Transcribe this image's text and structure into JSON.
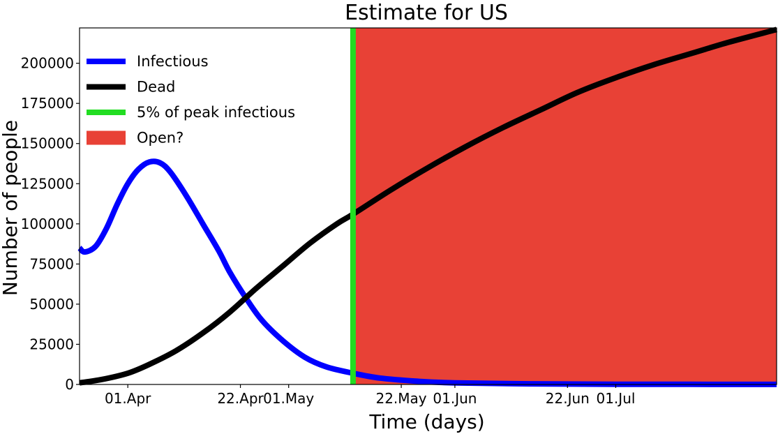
{
  "chart_data": {
    "type": "line",
    "title": "Estimate for US",
    "xlabel": "Time (days)",
    "ylabel": "Number of people",
    "xlim": [
      "2020-03-23",
      "2020-07-31"
    ],
    "ylim": [
      0,
      222000
    ],
    "yticks": [
      0,
      25000,
      50000,
      75000,
      100000,
      125000,
      150000,
      175000,
      200000
    ],
    "xticks": [
      {
        "date": "2020-04-01",
        "label": "01.Apr"
      },
      {
        "date": "2020-04-22",
        "label": "22.Apr"
      },
      {
        "date": "2020-05-01",
        "label": "01.May"
      },
      {
        "date": "2020-05-22",
        "label": "22.May"
      },
      {
        "date": "2020-06-01",
        "label": "01.Jun"
      },
      {
        "date": "2020-06-22",
        "label": "22.Jun"
      },
      {
        "date": "2020-07-01",
        "label": "01.Jul"
      }
    ],
    "series": [
      {
        "name": "Infectious",
        "color": "#0000ff",
        "points": [
          [
            "2020-03-23",
            85000
          ],
          [
            "2020-03-24",
            82500
          ],
          [
            "2020-03-26",
            86000
          ],
          [
            "2020-03-28",
            97000
          ],
          [
            "2020-03-30",
            112000
          ],
          [
            "2020-04-01",
            125000
          ],
          [
            "2020-04-03",
            134000
          ],
          [
            "2020-04-05",
            138500
          ],
          [
            "2020-04-07",
            138000
          ],
          [
            "2020-04-09",
            132000
          ],
          [
            "2020-04-12",
            117000
          ],
          [
            "2020-04-15",
            100000
          ],
          [
            "2020-04-18",
            83000
          ],
          [
            "2020-04-20",
            70000
          ],
          [
            "2020-04-23",
            54000
          ],
          [
            "2020-04-26",
            40000
          ],
          [
            "2020-04-30",
            27000
          ],
          [
            "2020-05-04",
            17000
          ],
          [
            "2020-05-08",
            11000
          ],
          [
            "2020-05-13",
            7000
          ],
          [
            "2020-05-18",
            4000
          ],
          [
            "2020-05-25",
            2000
          ],
          [
            "2020-06-01",
            1000
          ],
          [
            "2020-06-15",
            400
          ],
          [
            "2020-07-01",
            150
          ],
          [
            "2020-07-31",
            50
          ]
        ]
      },
      {
        "name": "Dead",
        "color": "#000000",
        "points": [
          [
            "2020-03-23",
            1000
          ],
          [
            "2020-03-27",
            3000
          ],
          [
            "2020-04-01",
            7000
          ],
          [
            "2020-04-05",
            12500
          ],
          [
            "2020-04-10",
            21000
          ],
          [
            "2020-04-15",
            32000
          ],
          [
            "2020-04-20",
            45000
          ],
          [
            "2020-04-25",
            60000
          ],
          [
            "2020-04-30",
            74000
          ],
          [
            "2020-05-05",
            88000
          ],
          [
            "2020-05-10",
            100000
          ],
          [
            "2020-05-13",
            106000
          ],
          [
            "2020-05-20",
            121000
          ],
          [
            "2020-05-27",
            135000
          ],
          [
            "2020-06-03",
            148000
          ],
          [
            "2020-06-10",
            160000
          ],
          [
            "2020-06-17",
            171000
          ],
          [
            "2020-06-24",
            182000
          ],
          [
            "2020-07-01",
            191000
          ],
          [
            "2020-07-08",
            199000
          ],
          [
            "2020-07-15",
            206000
          ],
          [
            "2020-07-22",
            213000
          ],
          [
            "2020-07-31",
            221000
          ]
        ]
      }
    ],
    "vline": {
      "name": "5% of peak infectious",
      "date": "2020-05-13",
      "color": "#22dd22"
    },
    "region": {
      "name": "Open?",
      "from": "2020-05-13",
      "to": "2020-07-31",
      "color": "#e84136"
    },
    "legend": {
      "position": "top-left"
    },
    "grid": false
  }
}
